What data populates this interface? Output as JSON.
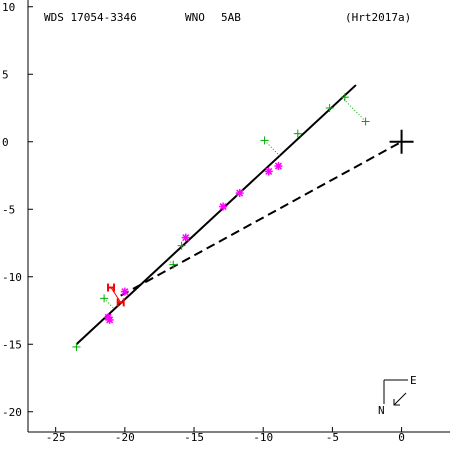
{
  "header": {
    "wds": "WDS 17054-3346",
    "discoverer": "WNO",
    "pair": "5AB",
    "reference": "(Hrt2017a)"
  },
  "compass": {
    "east": "E",
    "north": "N"
  },
  "chart_data": {
    "type": "scatter",
    "title": "",
    "xlabel": "",
    "ylabel": "",
    "xlim": [
      -27,
      3.5
    ],
    "ylim": [
      -21.5,
      10.5
    ],
    "x_ticks": [
      -25,
      -20,
      -15,
      -10,
      -5,
      0
    ],
    "y_ticks": [
      -20,
      -15,
      -10,
      -5,
      0,
      5,
      10
    ],
    "colors": {
      "axes": "#000000",
      "green": "#00aa00",
      "magenta": "#ff00ff",
      "red": "#ff0000"
    },
    "primary": {
      "x": 0,
      "y": 0
    },
    "fit_line": {
      "from": [
        -23.5,
        -15.0
      ],
      "to": [
        -3.3,
        4.2
      ]
    },
    "node_line": {
      "from": [
        -20.3,
        -11.4
      ],
      "to": [
        0,
        0
      ]
    },
    "green_plus": [
      {
        "x": -23.5,
        "y": -15.2
      },
      {
        "x": -21.5,
        "y": -11.6
      },
      {
        "x": -16.5,
        "y": -9.1
      },
      {
        "x": -15.9,
        "y": -7.7
      },
      {
        "x": -9.9,
        "y": 0.1
      },
      {
        "x": -7.5,
        "y": 0.6
      },
      {
        "x": -5.2,
        "y": 2.5
      },
      {
        "x": -4.1,
        "y": 3.3
      },
      {
        "x": -2.6,
        "y": 1.5
      }
    ],
    "magenta_star": [
      {
        "x": -21.2,
        "y": -13.0
      },
      {
        "x": -21.1,
        "y": -13.2
      },
      {
        "x": -20.0,
        "y": -11.1
      },
      {
        "x": -15.6,
        "y": -7.1
      },
      {
        "x": -12.9,
        "y": -4.8
      },
      {
        "x": -11.7,
        "y": -3.8
      },
      {
        "x": -9.6,
        "y": -2.2
      },
      {
        "x": -8.9,
        "y": -1.8
      }
    ],
    "red_h": [
      {
        "x": -21.0,
        "y": -10.8
      },
      {
        "x": -20.3,
        "y": -11.9
      }
    ]
  }
}
